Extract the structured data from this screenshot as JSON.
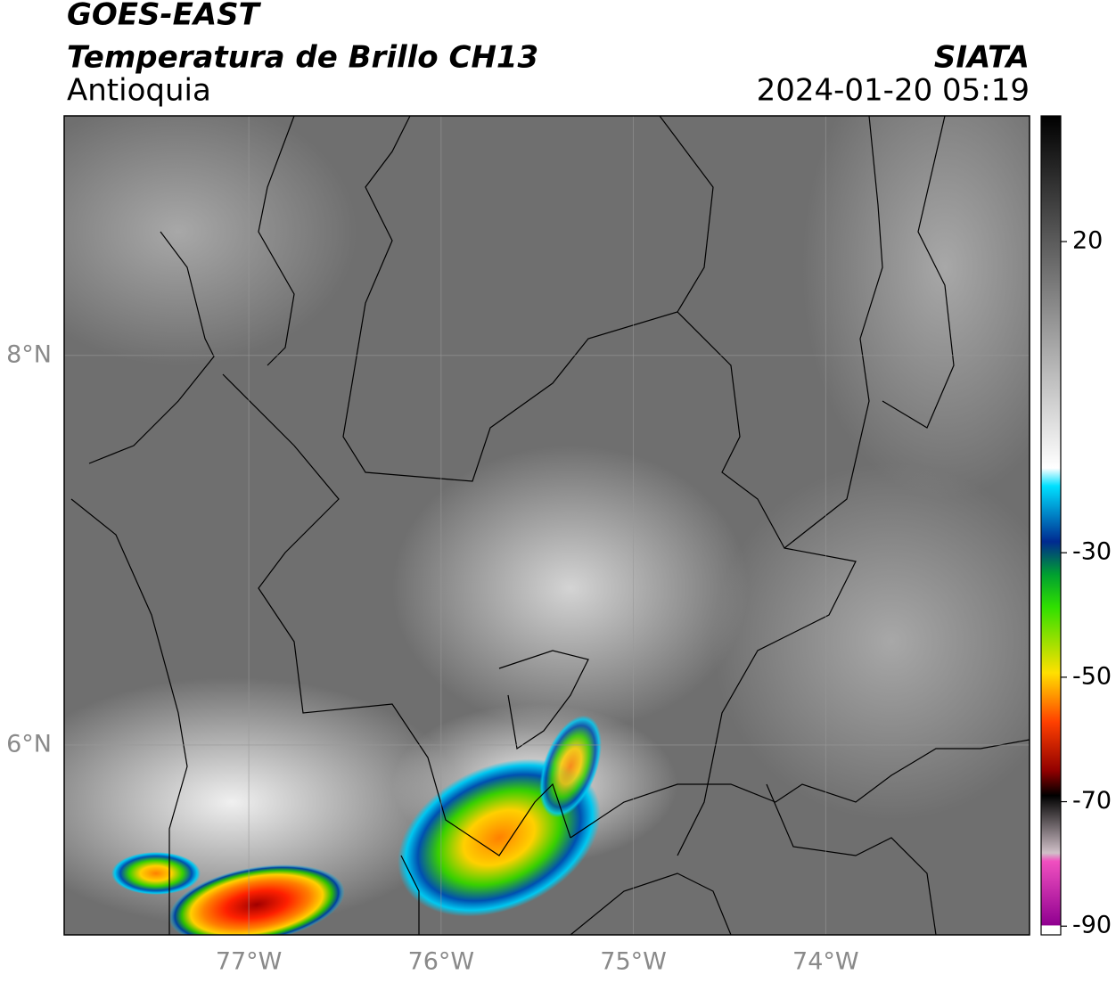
{
  "header": {
    "title": "GOES-EAST",
    "subtitle": "Temperatura de Brillo CH13",
    "region": "Antioquia",
    "source": "SIATA",
    "datetime": "2024-01-20 05:19"
  },
  "map": {
    "lon_range": [
      -77.96,
      -72.94
    ],
    "lat_range": [
      5.025,
      9.23
    ],
    "lon_ticks": [
      {
        "value": -77,
        "label": "77°W"
      },
      {
        "value": -76,
        "label": "76°W"
      },
      {
        "value": -75,
        "label": "75°W"
      },
      {
        "value": -74,
        "label": "74°W"
      }
    ],
    "lat_ticks": [
      {
        "value": 8,
        "label": "8°N"
      },
      {
        "value": 6,
        "label": "6°N"
      }
    ],
    "grid": true
  },
  "colorbar": {
    "range": [
      -91.4,
      40.2
    ],
    "ticks": [
      20,
      -30,
      -50,
      -70,
      -90
    ]
  }
}
